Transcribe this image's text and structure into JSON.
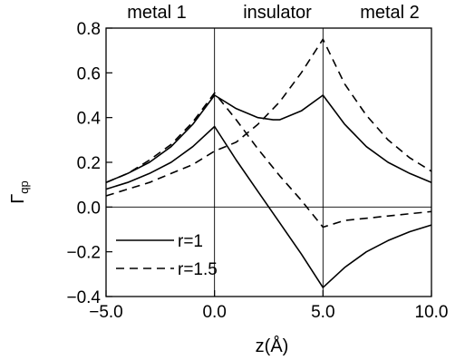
{
  "chart_data": {
    "type": "line",
    "title": "",
    "xlabel": "z(Å)",
    "ylabel": "Γ",
    "ylabel_subscript": "qp",
    "xlim": [
      -5.0,
      10.0
    ],
    "ylim": [
      -0.4,
      0.8
    ],
    "xticks": [
      "−5.0",
      "0.0",
      "5.0",
      "10.0"
    ],
    "yticks": [
      "−0.4",
      "−0.2",
      "0.0",
      "0.2",
      "0.4",
      "0.6",
      "0.8"
    ],
    "xtick_values": [
      -5,
      0,
      5,
      10
    ],
    "ytick_values": [
      -0.4,
      -0.2,
      0.0,
      0.2,
      0.4,
      0.6,
      0.8
    ],
    "grid": false,
    "region_boundaries": [
      0.0,
      5.0
    ],
    "reference_line": 0.0,
    "regions": [
      "metal 1",
      "insulator",
      "metal 2"
    ],
    "legend": {
      "placement": "lower-left",
      "entries": [
        {
          "label": "r=1",
          "style": "solid"
        },
        {
          "label": "r=1.5",
          "style": "dashed"
        }
      ]
    },
    "series": [
      {
        "group": "r=1",
        "style": "solid",
        "x": [
          -5.0,
          -4.0,
          -3.0,
          -2.0,
          -1.0,
          0.0,
          1.0,
          2.0,
          2.7,
          3.0,
          4.0,
          5.0,
          6.0,
          7.0,
          8.0,
          9.0,
          10.0
        ],
        "y": [
          0.11,
          0.15,
          0.2,
          0.27,
          0.37,
          0.5,
          0.44,
          0.4,
          0.39,
          0.39,
          0.43,
          0.5,
          0.37,
          0.27,
          0.2,
          0.15,
          0.11
        ]
      },
      {
        "group": "r=1",
        "style": "solid",
        "x": [
          -5.0,
          -4.0,
          -3.0,
          -2.0,
          -1.0,
          0.0,
          1.0,
          2.0,
          3.0,
          4.0,
          5.0,
          6.0,
          7.0,
          8.0,
          9.0,
          10.0
        ],
        "y": [
          0.08,
          0.11,
          0.15,
          0.2,
          0.27,
          0.36,
          0.21,
          0.07,
          -0.07,
          -0.21,
          -0.36,
          -0.27,
          -0.2,
          -0.15,
          -0.11,
          -0.08
        ]
      },
      {
        "group": "r=1.5",
        "style": "dashed",
        "x": [
          -5.0,
          -4.0,
          -3.0,
          -2.0,
          -1.0,
          0.0,
          1.0,
          2.0,
          3.0,
          4.0,
          5.0,
          6.0,
          7.0,
          8.0,
          9.0,
          10.0
        ],
        "y": [
          0.11,
          0.15,
          0.21,
          0.28,
          0.38,
          0.51,
          0.39,
          0.26,
          0.14,
          0.03,
          -0.09,
          -0.06,
          -0.05,
          -0.04,
          -0.03,
          -0.02
        ]
      },
      {
        "group": "r=1.5",
        "style": "dashed",
        "x": [
          -5.0,
          -4.0,
          -3.0,
          -2.0,
          -1.0,
          0.0,
          1.0,
          2.0,
          3.0,
          4.0,
          5.0,
          6.0,
          7.0,
          8.0,
          9.0,
          10.0
        ],
        "y": [
          0.05,
          0.08,
          0.11,
          0.15,
          0.19,
          0.25,
          0.29,
          0.37,
          0.47,
          0.6,
          0.75,
          0.55,
          0.41,
          0.3,
          0.22,
          0.16
        ]
      }
    ]
  }
}
